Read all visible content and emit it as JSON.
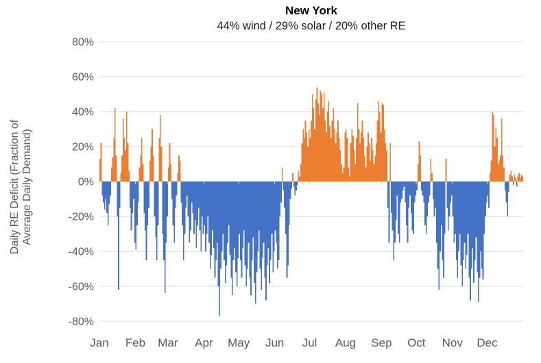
{
  "chart_data": {
    "type": "bar",
    "title": "New York",
    "subtitle": "44% wind / 29% solar / 20% other RE",
    "ylabel_line1": "Daily RE Deficit (Fraction of",
    "ylabel_line2": "Average Daily Demand)",
    "ylim": [
      -80,
      80
    ],
    "ytick_step": 20,
    "ytick_values": [
      80,
      60,
      40,
      20,
      0,
      -20,
      -40,
      -60,
      -80
    ],
    "ytick_labels": [
      "80%",
      "60%",
      "40%",
      "20%",
      "0%",
      "-20%",
      "-40%",
      "-60%",
      "-80%"
    ],
    "x_months": [
      "Jan",
      "Feb",
      "Mar",
      "Apr",
      "May",
      "Jun",
      "Jul",
      "Aug",
      "Sep",
      "Oct",
      "Nov",
      "Dec"
    ],
    "month_start_days": [
      0,
      31,
      59,
      90,
      120,
      151,
      181,
      212,
      243,
      273,
      304,
      334
    ],
    "grid": true,
    "legend": false,
    "positive_color": "#ED7D31",
    "negative_color": "#4472C4",
    "gridline_color": "#D9D9D9",
    "axis_text_color": "#595959",
    "positive_meaning": "daily RE deficit (orange)",
    "negative_meaning": "daily RE surplus (blue)",
    "daily_values_pct": [
      13,
      22,
      -8,
      -12,
      -16,
      -10,
      -18,
      -25,
      -13,
      -8,
      8,
      14,
      25,
      42,
      15,
      -20,
      -62,
      -15,
      5,
      15,
      36,
      25,
      18,
      40,
      22,
      6,
      -15,
      -28,
      -18,
      -10,
      -35,
      -39,
      -25,
      -12,
      8,
      15,
      25,
      10,
      -18,
      -28,
      -45,
      -25,
      -15,
      12,
      20,
      30,
      15,
      -20,
      -32,
      -45,
      -25,
      25,
      38,
      20,
      -30,
      -45,
      -64,
      -35,
      -20,
      8,
      22,
      10,
      -10,
      -25,
      -35,
      -15,
      -8,
      5,
      15,
      12,
      -12,
      -25,
      -45,
      -30,
      -15,
      -8,
      -20,
      -35,
      -28,
      -12,
      -18,
      -30,
      -22,
      -38,
      -25,
      -15,
      -28,
      -40,
      -20,
      -30,
      -25,
      -40,
      -30,
      -20,
      -35,
      -50,
      -42,
      -28,
      -38,
      -55,
      -45,
      -35,
      -60,
      -77,
      -50,
      -40,
      -30,
      -45,
      -58,
      -48,
      -35,
      -25,
      -42,
      -55,
      -65,
      -45,
      -38,
      -52,
      -60,
      -44,
      -30,
      -45,
      -55,
      -38,
      -28,
      -48,
      -60,
      -50,
      -35,
      -55,
      -65,
      -45,
      -32,
      -58,
      -70,
      -52,
      -40,
      -28,
      -50,
      -62,
      -44,
      -35,
      -55,
      -68,
      -48,
      -38,
      -58,
      -45,
      -30,
      -52,
      -40,
      -28,
      -35,
      -50,
      -45,
      -20,
      -12,
      8,
      -5,
      -15,
      -30,
      -55,
      -48,
      -25,
      -10,
      -4,
      5,
      -3,
      -8,
      -5,
      -2,
      6,
      3,
      10,
      22,
      30,
      25,
      35,
      28,
      20,
      30,
      25,
      35,
      50,
      42,
      30,
      47,
      54,
      45,
      38,
      52,
      50,
      42,
      51,
      35,
      28,
      40,
      46,
      32,
      25,
      35,
      42,
      30,
      22,
      28,
      35,
      25,
      18,
      10,
      5,
      8,
      28,
      30,
      25,
      8,
      3,
      22,
      30,
      26,
      18,
      10,
      25,
      45,
      30,
      22,
      28,
      35,
      25,
      15,
      8,
      20,
      28,
      22,
      12,
      25,
      18,
      10,
      15,
      22,
      35,
      46,
      40,
      28,
      45,
      44,
      30,
      22,
      18,
      -15,
      -35,
      22,
      -18,
      -28,
      -45,
      -35,
      -22,
      -8,
      -30,
      -35,
      -12,
      -10,
      -5,
      -3,
      -12,
      -25,
      -35,
      -15,
      -8,
      -18,
      -28,
      -30,
      -12,
      -8,
      -5,
      10,
      23,
      15,
      -5,
      -8,
      -12,
      -25,
      -30,
      -20,
      -12,
      -8,
      13,
      5,
      -10,
      -20,
      -15,
      -35,
      -50,
      -62,
      -40,
      -25,
      -45,
      -55,
      -30,
      13,
      -15,
      -28,
      -20,
      -12,
      -8,
      -20,
      -35,
      -30,
      -45,
      -55,
      -40,
      -30,
      -48,
      -60,
      -45,
      -35,
      -50,
      -42,
      -30,
      -55,
      -68,
      -50,
      -38,
      -58,
      -45,
      -32,
      -52,
      -69,
      -55,
      -40,
      -50,
      -56,
      -30,
      -20,
      -12,
      -8,
      -15,
      5,
      12,
      40,
      38,
      20,
      31,
      25,
      10,
      12,
      15,
      36,
      15,
      8,
      -5,
      -12,
      -20,
      -6,
      4,
      6,
      3,
      -2,
      4,
      2,
      -3,
      3,
      5,
      2,
      4,
      3
    ]
  }
}
